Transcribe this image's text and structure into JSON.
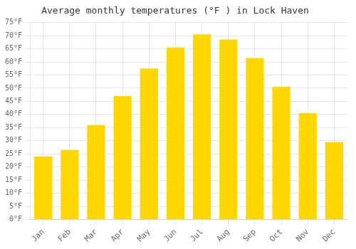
{
  "chart_data": {
    "type": "bar",
    "title": "Average monthly temperatures (°F ) in Lock Haven",
    "categories": [
      "Jan",
      "Feb",
      "Mar",
      "Apr",
      "May",
      "Jun",
      "Jul",
      "Aug",
      "Sep",
      "Oct",
      "Nov",
      "Dec"
    ],
    "values": [
      24,
      26.5,
      36,
      47,
      57.5,
      65.5,
      70.5,
      68.5,
      61.5,
      50.5,
      40.5,
      29.5
    ],
    "color": "#FFD700",
    "ylim": [
      0,
      75
    ],
    "yticks": [
      {
        "value": 0,
        "label": "0°F"
      },
      {
        "value": 5,
        "label": "5°F"
      },
      {
        "value": 10,
        "label": "10°F"
      },
      {
        "value": 15,
        "label": "15°F"
      },
      {
        "value": 20,
        "label": "20°F"
      },
      {
        "value": 25,
        "label": "25°F"
      },
      {
        "value": 30,
        "label": "30°F"
      },
      {
        "value": 35,
        "label": "35°F"
      },
      {
        "value": 40,
        "label": "40°F"
      },
      {
        "value": 45,
        "label": "45°F"
      },
      {
        "value": 50,
        "label": "50°F"
      },
      {
        "value": 55,
        "label": "55°F"
      },
      {
        "value": 60,
        "label": "60°F"
      },
      {
        "value": 65,
        "label": "65°F"
      },
      {
        "value": 70,
        "label": "70°F"
      },
      {
        "value": 75,
        "label": "75°F"
      }
    ],
    "grid": true
  }
}
